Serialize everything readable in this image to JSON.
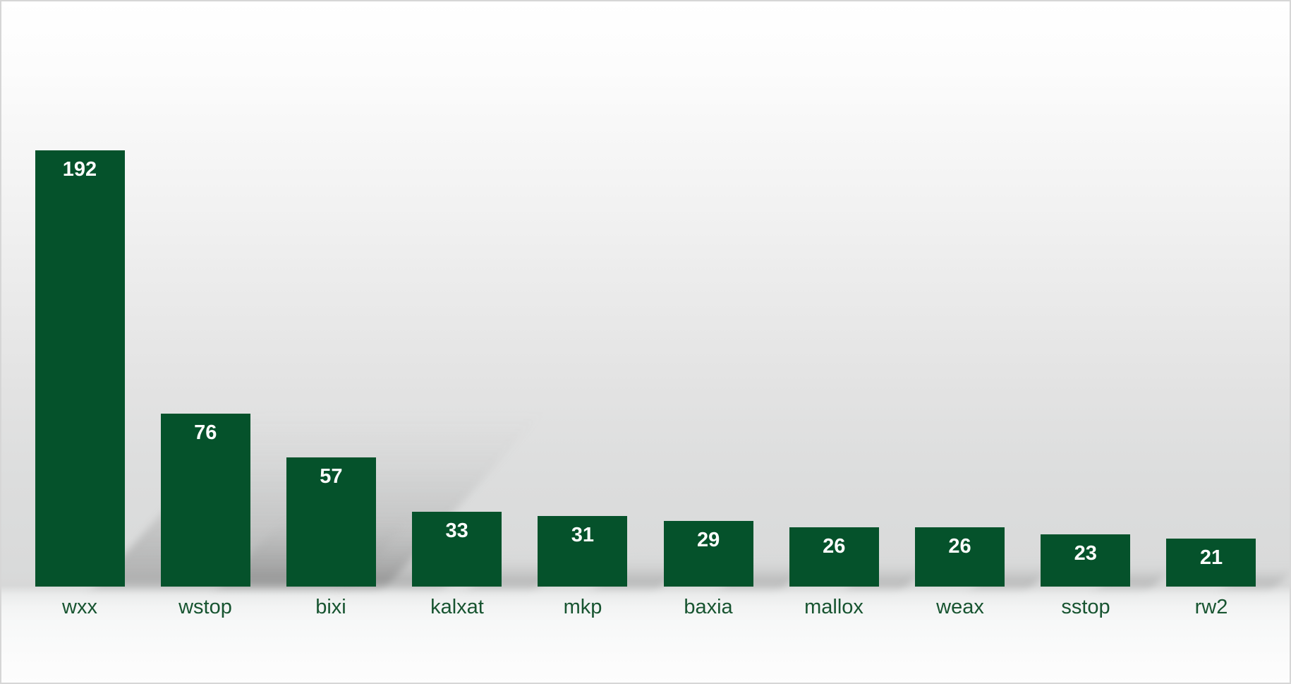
{
  "chart_data": {
    "type": "bar",
    "title": "",
    "xlabel": "",
    "ylabel": "",
    "categories": [
      "wxx",
      "wstop",
      "bixi",
      "kalxat",
      "mkp",
      "baxia",
      "mallox",
      "weax",
      "sstop",
      "rw2"
    ],
    "values": [
      192,
      76,
      57,
      33,
      31,
      29,
      26,
      26,
      23,
      21
    ],
    "value_labels": [
      "192",
      "76",
      "57",
      "33",
      "31",
      "29",
      "26",
      "26",
      "23",
      "21"
    ],
    "ylim": [
      0,
      192
    ],
    "grid": false,
    "legend": false,
    "axes_visible": false,
    "value_label_position": "inside-top",
    "colors": {
      "bar": "#05522b",
      "value_label": "#ffffff",
      "category_label": "#175430",
      "wall_gray": "#d7d8d8",
      "floor": "#f6f7f7",
      "frame_border": "#d6d6d6"
    },
    "effects": {
      "bar_shadow": "soft diagonal perspective shadow rising to the right of each bar, proportional to bar height"
    }
  }
}
